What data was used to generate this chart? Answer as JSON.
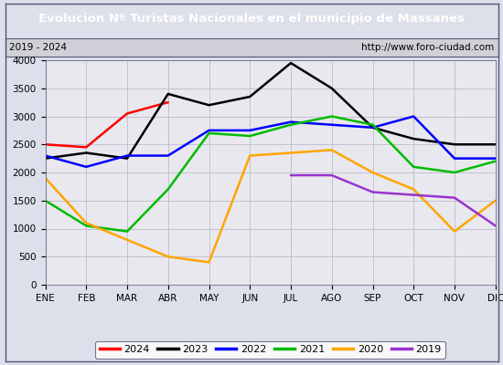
{
  "title": "Evolucion Nº Turistas Nacionales en el municipio de Massanes",
  "subtitle_left": "2019 - 2024",
  "subtitle_right": "http://www.foro-ciudad.com",
  "title_bg_color": "#4472c4",
  "title_text_color": "#ffffff",
  "months": [
    "ENE",
    "FEB",
    "MAR",
    "ABR",
    "MAY",
    "JUN",
    "JUL",
    "AGO",
    "SEP",
    "OCT",
    "NOV",
    "DIC"
  ],
  "ylim": [
    0,
    4000
  ],
  "yticks": [
    0,
    500,
    1000,
    1500,
    2000,
    2500,
    3000,
    3500,
    4000
  ],
  "series": {
    "2024": {
      "color": "#ff0000",
      "data": [
        2500,
        2450,
        3050,
        3250,
        null,
        null,
        null,
        null,
        null,
        null,
        null,
        null
      ]
    },
    "2023": {
      "color": "#000000",
      "data": [
        2250,
        2350,
        2250,
        3400,
        3200,
        3350,
        3950,
        3500,
        2800,
        2600,
        2500,
        2500
      ]
    },
    "2022": {
      "color": "#0000ff",
      "data": [
        2300,
        2100,
        2300,
        2300,
        2750,
        2750,
        2900,
        2850,
        2800,
        3000,
        2250,
        2250
      ]
    },
    "2021": {
      "color": "#00bb00",
      "data": [
        1500,
        1050,
        950,
        1700,
        2700,
        2650,
        2850,
        3000,
        2850,
        2100,
        2000,
        2200
      ]
    },
    "2020": {
      "color": "#ffa500",
      "data": [
        1900,
        1100,
        800,
        500,
        400,
        2300,
        2350,
        2400,
        2000,
        1700,
        950,
        1500
      ]
    },
    "2019": {
      "color": "#9933cc",
      "data": [
        null,
        null,
        null,
        null,
        null,
        null,
        1950,
        1950,
        1650,
        1600,
        1550,
        1050
      ]
    }
  },
  "legend_order": [
    "2024",
    "2023",
    "2022",
    "2021",
    "2020",
    "2019"
  ],
  "bg_color": "#dde0ea",
  "plot_bg_color": "#e8e8ee",
  "subtitle_bg_color": "#d0d0d8",
  "border_color": "#555577"
}
